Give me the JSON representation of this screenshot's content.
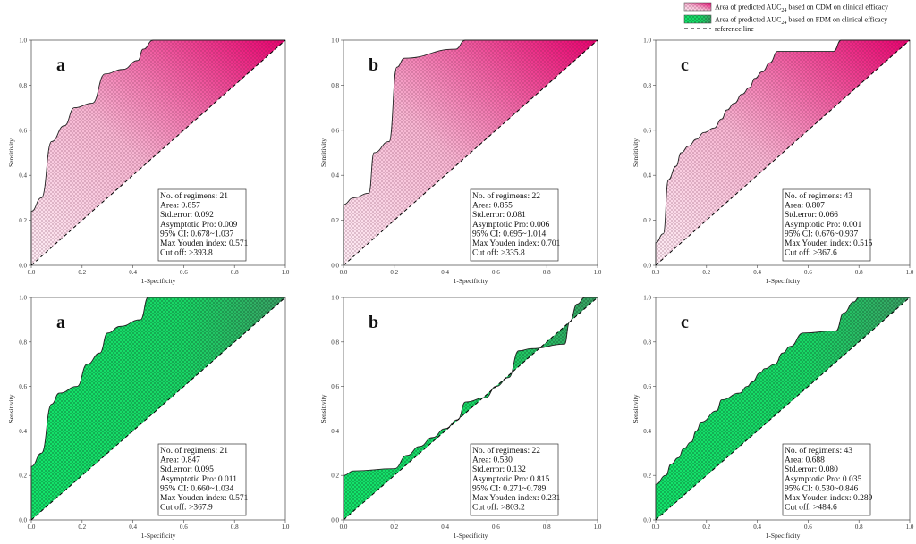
{
  "legend": {
    "items": [
      {
        "prefix": "Area of predicted AUC",
        "sub": "24",
        "suffix": " based on CDM on clinical efficacy",
        "color": "#f2aecb",
        "pattern": "pink"
      },
      {
        "prefix": "Area of predicted AUC",
        "sub": "24",
        "suffix": " based on FDM on clinical efficacy",
        "color": "#27e07a",
        "pattern": "green"
      },
      {
        "prefix": "reference line",
        "sub": "",
        "suffix": "",
        "color": "#000000",
        "pattern": "dash"
      }
    ]
  },
  "colors": {
    "pink_light": "#fbe3ef",
    "pink_dark": "#e8006e",
    "green_light": "#10e067",
    "green_dark": "#3a9f64"
  },
  "chart_data": [
    {
      "type": "line",
      "label": "a",
      "method": "CDM",
      "xlabel": "1-Specificity",
      "ylabel": "Sensitivity",
      "xlim": [
        0,
        1
      ],
      "ylim": [
        0,
        1
      ],
      "ticks": [
        "0.0",
        "0.2",
        "0.4",
        "0.6",
        "0.8",
        "1.0"
      ],
      "roc": [
        [
          0,
          0
        ],
        [
          0,
          0.24
        ],
        [
          0.04,
          0.3
        ],
        [
          0.08,
          0.55
        ],
        [
          0.13,
          0.62
        ],
        [
          0.17,
          0.7
        ],
        [
          0.24,
          0.72
        ],
        [
          0.29,
          0.85
        ],
        [
          0.36,
          0.87
        ],
        [
          0.42,
          0.91
        ],
        [
          0.44,
          0.96
        ],
        [
          0.48,
          1.0
        ],
        [
          1.0,
          1.0
        ]
      ],
      "stats": [
        "No. of regimens: 21",
        "Area: 0.857",
        "Std.error: 0.092",
        "Asymptotic Pro: 0.009",
        "95% CI: 0.678~1.037",
        "Max Youden index: 0.571",
        "Cut off: >393.8"
      ]
    },
    {
      "type": "line",
      "label": "b",
      "method": "CDM",
      "xlabel": "1-Specificity",
      "ylabel": "Sensitivity",
      "xlim": [
        0,
        1
      ],
      "ylim": [
        0,
        1
      ],
      "ticks": [
        "0.0",
        "0.2",
        "0.4",
        "0.6",
        "0.8",
        "1.0"
      ],
      "roc": [
        [
          0,
          0
        ],
        [
          0,
          0.27
        ],
        [
          0.04,
          0.3
        ],
        [
          0.1,
          0.32
        ],
        [
          0.12,
          0.5
        ],
        [
          0.18,
          0.55
        ],
        [
          0.21,
          0.88
        ],
        [
          0.24,
          0.92
        ],
        [
          0.44,
          0.96
        ],
        [
          0.48,
          1.0
        ],
        [
          1.0,
          1.0
        ]
      ],
      "stats": [
        "No. of regimens: 22",
        "Area: 0.855",
        "Std.error: 0.081",
        "Asymptotic Pro: 0.006",
        "95% CI: 0.695~1.014",
        "Max Youden index: 0.701",
        "Cut off: >335.8"
      ]
    },
    {
      "type": "line",
      "label": "c",
      "method": "CDM",
      "xlabel": "1-Specificity",
      "ylabel": "Sensitivity",
      "xlim": [
        0,
        1
      ],
      "ylim": [
        0,
        1
      ],
      "ticks": [
        "0.0",
        "0.2",
        "0.4",
        "0.6",
        "0.8",
        "1.0"
      ],
      "roc": [
        [
          0,
          0
        ],
        [
          0,
          0.1
        ],
        [
          0.03,
          0.14
        ],
        [
          0.05,
          0.38
        ],
        [
          0.08,
          0.44
        ],
        [
          0.1,
          0.5
        ],
        [
          0.13,
          0.53
        ],
        [
          0.16,
          0.56
        ],
        [
          0.19,
          0.59
        ],
        [
          0.23,
          0.61
        ],
        [
          0.26,
          0.65
        ],
        [
          0.28,
          0.69
        ],
        [
          0.31,
          0.72
        ],
        [
          0.34,
          0.76
        ],
        [
          0.37,
          0.79
        ],
        [
          0.39,
          0.83
        ],
        [
          0.42,
          0.86
        ],
        [
          0.45,
          0.9
        ],
        [
          0.48,
          0.95
        ],
        [
          0.7,
          0.95
        ],
        [
          0.73,
          1.0
        ],
        [
          1.0,
          1.0
        ]
      ],
      "stats": [
        "No. of regimens: 43",
        "Area: 0.807",
        "Std.error: 0.066",
        "Asymptotic Pro: 0.001",
        "95% CI: 0.676~0.937",
        "Max Youden index: 0.515",
        "Cut off: >367.6"
      ]
    },
    {
      "type": "line",
      "label": "a",
      "method": "FDM",
      "xlabel": "1-Specificity",
      "ylabel": "Sensitivity",
      "xlim": [
        0,
        1
      ],
      "ylim": [
        0,
        1
      ],
      "ticks": [
        "0.0",
        "0.2",
        "0.4",
        "0.6",
        "0.8",
        "1.0"
      ],
      "roc": [
        [
          0,
          0
        ],
        [
          0,
          0.24
        ],
        [
          0.04,
          0.3
        ],
        [
          0.08,
          0.52
        ],
        [
          0.11,
          0.57
        ],
        [
          0.18,
          0.6
        ],
        [
          0.22,
          0.7
        ],
        [
          0.27,
          0.75
        ],
        [
          0.3,
          0.84
        ],
        [
          0.35,
          0.87
        ],
        [
          0.43,
          0.9
        ],
        [
          0.46,
          1.0
        ],
        [
          1.0,
          1.0
        ]
      ],
      "stats": [
        "No. of regimens: 21",
        "Area: 0.847",
        "Std.error: 0.095",
        "Asymptotic Pro: 0.011",
        "95% CI: 0.660~1.034",
        "Max Youden index: 0.571",
        "Cut off: >367.9"
      ]
    },
    {
      "type": "line",
      "label": "b",
      "method": "FDM",
      "xlabel": "1-Specificity",
      "ylabel": "Sensitivity",
      "xlim": [
        0,
        1
      ],
      "ylim": [
        0,
        1
      ],
      "ticks": [
        "0.0",
        "0.2",
        "0.4",
        "0.6",
        "0.8",
        "1.0"
      ],
      "roc": [
        [
          0,
          0
        ],
        [
          0,
          0.2
        ],
        [
          0.04,
          0.22
        ],
        [
          0.2,
          0.23
        ],
        [
          0.25,
          0.29
        ],
        [
          0.3,
          0.33
        ],
        [
          0.35,
          0.37
        ],
        [
          0.4,
          0.41
        ],
        [
          0.45,
          0.45
        ],
        [
          0.48,
          0.53
        ],
        [
          0.56,
          0.55
        ],
        [
          0.6,
          0.6
        ],
        [
          0.65,
          0.64
        ],
        [
          0.69,
          0.76
        ],
        [
          0.74,
          0.77
        ],
        [
          0.87,
          0.79
        ],
        [
          0.89,
          0.89
        ],
        [
          0.92,
          0.97
        ],
        [
          0.95,
          1.0
        ],
        [
          1.0,
          1.0
        ]
      ],
      "stats": [
        "No. of regimens: 22",
        "Area: 0.530",
        "Std.error: 0.132",
        "Asymptotic Pro: 0.815",
        "95% CI: 0.271~0.789",
        "Max Youden index: 0.231",
        "Cut off: >803.2"
      ]
    },
    {
      "type": "line",
      "label": "c",
      "method": "FDM",
      "xlabel": "1-Specificity",
      "ylabel": "Sensitivity",
      "xlim": [
        0,
        1
      ],
      "ylim": [
        0,
        1
      ],
      "ticks": [
        "0.0",
        "0.2",
        "0.4",
        "0.6",
        "0.8",
        "1.0"
      ],
      "roc": [
        [
          0,
          0
        ],
        [
          0,
          0.16
        ],
        [
          0.04,
          0.2
        ],
        [
          0.06,
          0.25
        ],
        [
          0.09,
          0.28
        ],
        [
          0.11,
          0.32
        ],
        [
          0.14,
          0.35
        ],
        [
          0.16,
          0.4
        ],
        [
          0.18,
          0.44
        ],
        [
          0.24,
          0.49
        ],
        [
          0.26,
          0.54
        ],
        [
          0.33,
          0.57
        ],
        [
          0.36,
          0.6
        ],
        [
          0.38,
          0.62
        ],
        [
          0.41,
          0.66
        ],
        [
          0.43,
          0.68
        ],
        [
          0.47,
          0.7
        ],
        [
          0.5,
          0.75
        ],
        [
          0.53,
          0.78
        ],
        [
          0.58,
          0.84
        ],
        [
          0.71,
          0.85
        ],
        [
          0.74,
          0.93
        ],
        [
          0.78,
          0.98
        ],
        [
          0.8,
          1.0
        ],
        [
          1.0,
          1.0
        ]
      ],
      "stats": [
        "No. of regimens: 43",
        "Area: 0.688",
        "Std.error: 0.080",
        "Asymptotic Pro: 0.035",
        "95% CI: 0.530~0.846",
        "Max Youden index: 0.289",
        "Cut off: >484.6"
      ]
    }
  ]
}
